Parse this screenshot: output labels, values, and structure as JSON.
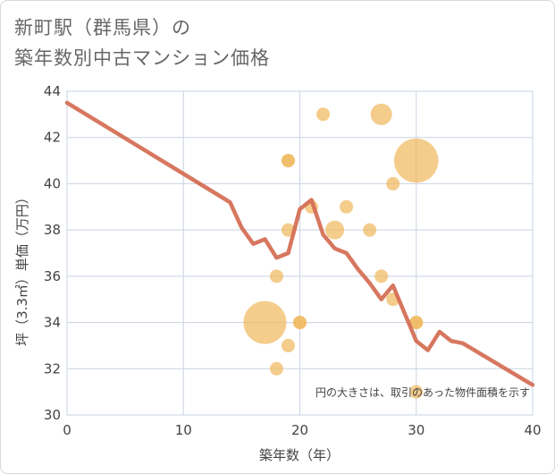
{
  "title_line1": "新町駅（群馬県）の",
  "title_line2": "築年数別中古マンション価格",
  "chart_data": {
    "type": "scatter",
    "xlabel": "築年数（年）",
    "ylabel": "坪（3.3㎡）単価（万円）",
    "xlim": [
      0,
      40
    ],
    "ylim": [
      30,
      44
    ],
    "xticks": [
      0,
      10,
      20,
      30,
      40
    ],
    "yticks": [
      30,
      32,
      34,
      36,
      38,
      40,
      42,
      44
    ],
    "note": "円の大きさは、取引のあった物件面積を示す",
    "colors": {
      "bubble": "#f0b85e",
      "line": "#d46b52",
      "grid": "#c9d3e0"
    },
    "points": [
      {
        "x": 17,
        "y": 34,
        "size": 3.2
      },
      {
        "x": 30,
        "y": 41,
        "size": 3.3
      },
      {
        "x": 27,
        "y": 43,
        "size": 1.6
      },
      {
        "x": 23,
        "y": 38,
        "size": 1.4
      },
      {
        "x": 22,
        "y": 43,
        "size": 1
      },
      {
        "x": 19,
        "y": 41,
        "size": 1
      },
      {
        "x": 19,
        "y": 41,
        "size": 1
      },
      {
        "x": 21,
        "y": 39,
        "size": 1
      },
      {
        "x": 24,
        "y": 39,
        "size": 1
      },
      {
        "x": 28,
        "y": 40,
        "size": 1
      },
      {
        "x": 19,
        "y": 38,
        "size": 1
      },
      {
        "x": 26,
        "y": 38,
        "size": 1
      },
      {
        "x": 18,
        "y": 36,
        "size": 1
      },
      {
        "x": 27,
        "y": 36,
        "size": 1
      },
      {
        "x": 28,
        "y": 35,
        "size": 1
      },
      {
        "x": 20,
        "y": 34,
        "size": 1
      },
      {
        "x": 20,
        "y": 34,
        "size": 1
      },
      {
        "x": 30,
        "y": 34,
        "size": 1
      },
      {
        "x": 30,
        "y": 34,
        "size": 1
      },
      {
        "x": 19,
        "y": 33,
        "size": 1
      },
      {
        "x": 18,
        "y": 32,
        "size": 1
      },
      {
        "x": 30,
        "y": 31,
        "size": 1
      }
    ],
    "trend": {
      "x": [
        0,
        14,
        15,
        16,
        17,
        18,
        19,
        20,
        21,
        22,
        23,
        24,
        25,
        26,
        27,
        28,
        29,
        30,
        31,
        32,
        33,
        34,
        40
      ],
      "y": [
        43.5,
        39.2,
        38.1,
        37.4,
        37.6,
        36.8,
        37.0,
        38.9,
        39.3,
        37.8,
        37.2,
        37.0,
        36.3,
        35.7,
        35.0,
        35.6,
        34.4,
        33.2,
        32.8,
        33.6,
        33.2,
        33.1,
        31.3
      ]
    }
  }
}
